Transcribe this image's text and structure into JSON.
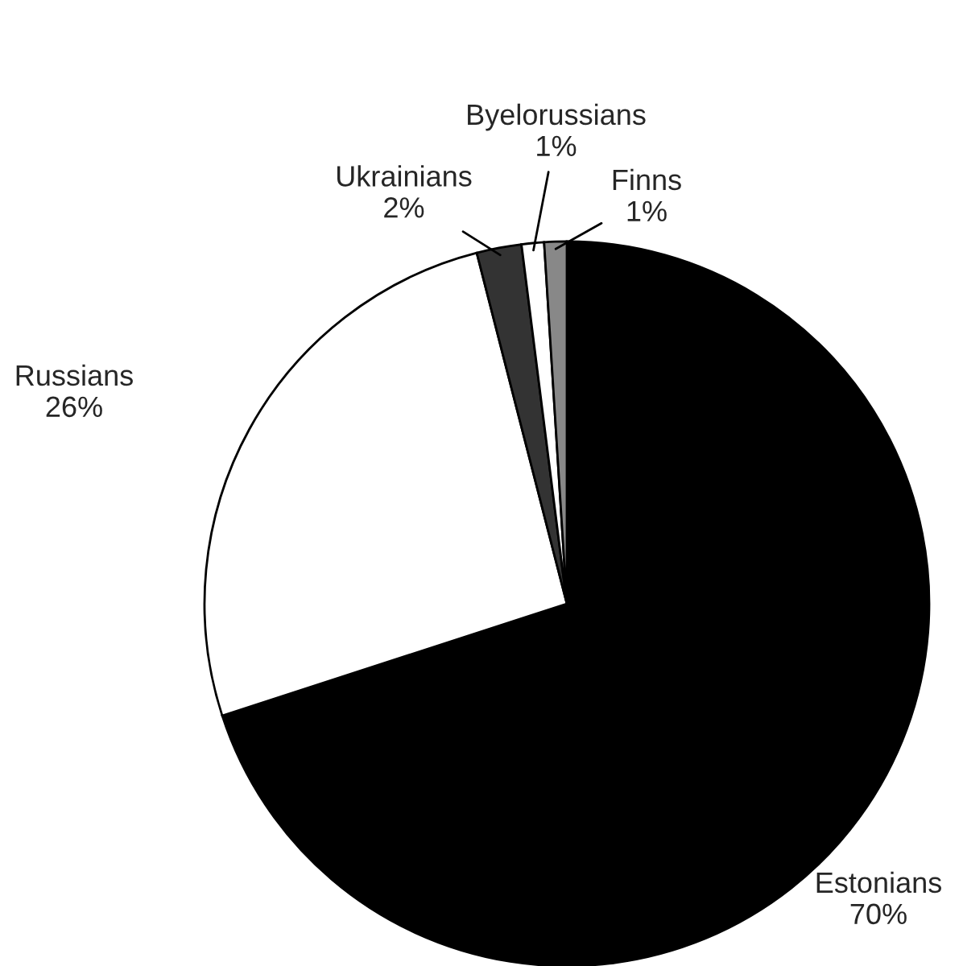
{
  "chart_data": {
    "type": "pie",
    "categories": [
      "Estonians",
      "Russians",
      "Ukrainians",
      "Byelorussians",
      "Finns"
    ],
    "values": [
      70,
      26,
      2,
      1,
      1
    ],
    "value_labels": [
      "70%",
      "26%",
      "2%",
      "1%",
      "1%"
    ],
    "colors": [
      "#000000",
      "#ffffff",
      "#333333",
      "#ffffff",
      "#888888"
    ],
    "legend": false
  }
}
